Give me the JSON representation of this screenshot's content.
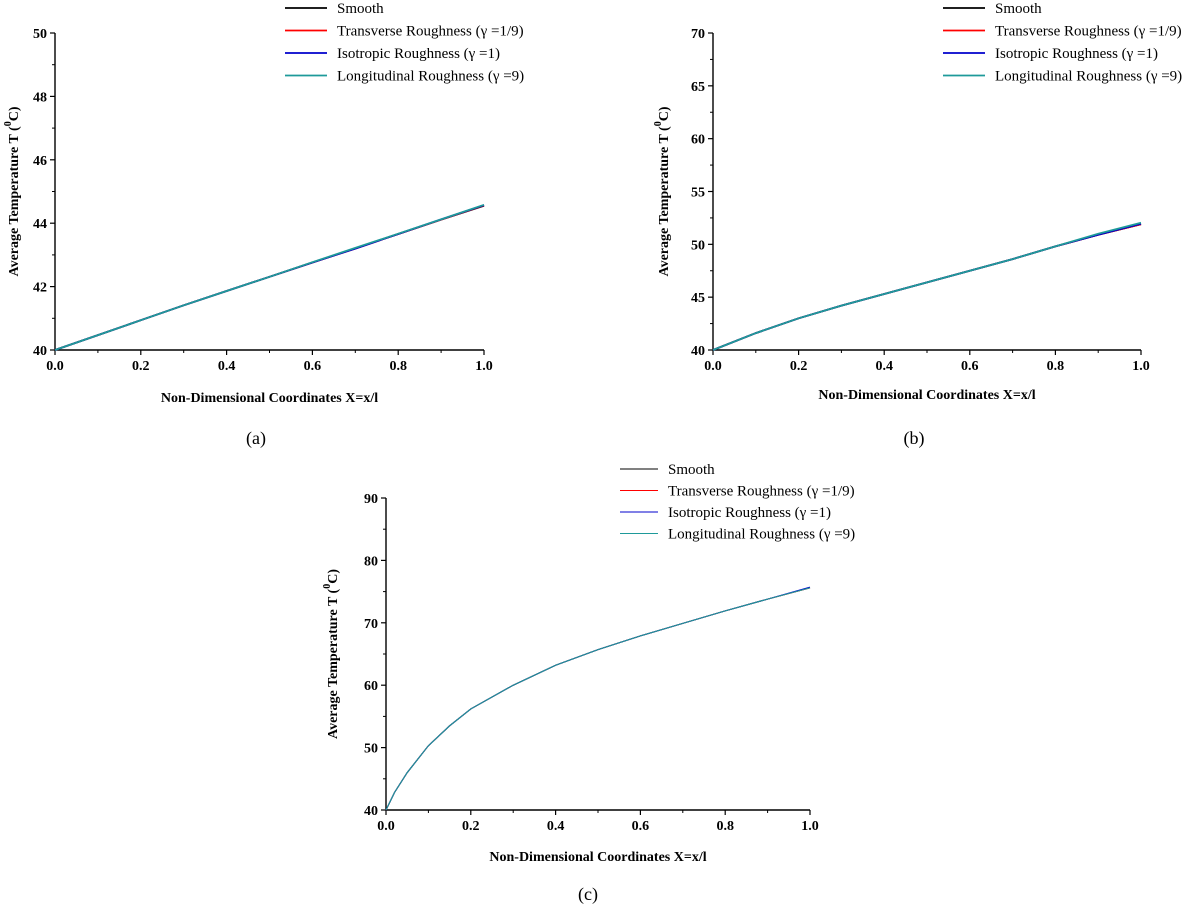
{
  "legend_colors": {
    "Smooth": "#000000",
    "Transverse Roughness (γ =1/9)": "#ff0000",
    "Isotropic Roughness (γ =1)": "#0000cc",
    "Longitudinal Roughness (γ =9)": "#1e9a9a"
  },
  "chart_data": [
    {
      "type": "line",
      "caption": "(a)",
      "xlabel": "Non-Dimensional Coordinates X=x/l",
      "ylabel": "Average Temperature T (",
      "ylabel_sup": "0",
      "ylabel_end": "C)",
      "xlim": [
        0,
        1
      ],
      "ylim": [
        40,
        50
      ],
      "xticks": [
        0.0,
        0.2,
        0.4,
        0.6,
        0.8,
        1.0
      ],
      "xtick_labels": [
        "0.0",
        "0.2",
        "0.4",
        "0.6",
        "0.8",
        "1.0"
      ],
      "yticks": [
        40,
        42,
        44,
        46,
        48,
        50
      ],
      "ytick_labels": [
        "40",
        "42",
        "44",
        "46",
        "48",
        "50"
      ],
      "legend": [
        "Smooth",
        "Transverse Roughness (γ =1/9)",
        "Isotropic Roughness (γ =1)",
        "Longitudinal Roughness (γ =9)"
      ],
      "x": [
        0.0,
        0.1,
        0.2,
        0.3,
        0.4,
        0.5,
        0.6,
        0.7,
        0.8,
        0.9,
        1.0
      ],
      "series": [
        {
          "name": "Smooth",
          "values": [
            40.0,
            40.47,
            40.94,
            41.41,
            41.86,
            42.31,
            42.76,
            43.21,
            43.66,
            44.11,
            44.55
          ]
        },
        {
          "name": "Transverse Roughness (γ =1/9)",
          "values": [
            40.0,
            40.47,
            40.94,
            41.41,
            41.86,
            42.31,
            42.76,
            43.2,
            43.66,
            44.11,
            44.56
          ]
        },
        {
          "name": "Isotropic Roughness (γ =1)",
          "values": [
            40.0,
            40.47,
            40.94,
            41.41,
            41.86,
            42.31,
            42.76,
            43.2,
            43.66,
            44.12,
            44.57
          ]
        },
        {
          "name": "Longitudinal Roughness (γ =9)",
          "values": [
            40.0,
            40.47,
            40.94,
            41.41,
            41.86,
            42.31,
            42.77,
            43.22,
            43.67,
            44.12,
            44.58
          ]
        }
      ]
    },
    {
      "type": "line",
      "caption": "(b)",
      "xlabel": "Non-Dimensional Coordinates X=x/l",
      "ylabel": "Average Temperature T (",
      "ylabel_sup": "0",
      "ylabel_end": "C)",
      "xlim": [
        0,
        1
      ],
      "ylim": [
        40,
        70
      ],
      "xticks": [
        0.0,
        0.2,
        0.4,
        0.6,
        0.8,
        1.0
      ],
      "xtick_labels": [
        "0.0",
        "0.2",
        "0.4",
        "0.6",
        "0.8",
        "1.0"
      ],
      "yticks": [
        40,
        45,
        50,
        55,
        60,
        65,
        70
      ],
      "ytick_labels": [
        "40",
        "45",
        "50",
        "55",
        "60",
        "65",
        "70"
      ],
      "legend": [
        "Smooth",
        "Transverse Roughness (γ =1/9)",
        "Isotropic Roughness (γ =1)",
        "Longitudinal Roughness (γ =9)"
      ],
      "x": [
        0.0,
        0.1,
        0.2,
        0.3,
        0.4,
        0.5,
        0.6,
        0.7,
        0.8,
        0.9,
        1.0
      ],
      "series": [
        {
          "name": "Smooth",
          "values": [
            40.0,
            41.6,
            43.0,
            44.2,
            45.3,
            46.4,
            47.5,
            48.6,
            49.8,
            50.9,
            51.9
          ]
        },
        {
          "name": "Transverse Roughness (γ =1/9)",
          "values": [
            40.0,
            41.6,
            43.0,
            44.2,
            45.3,
            46.4,
            47.5,
            48.6,
            49.8,
            50.9,
            51.9
          ]
        },
        {
          "name": "Isotropic Roughness (γ =1)",
          "values": [
            40.0,
            41.6,
            43.0,
            44.2,
            45.3,
            46.4,
            47.5,
            48.6,
            49.8,
            50.9,
            51.95
          ]
        },
        {
          "name": "Longitudinal Roughness (γ =9)",
          "values": [
            40.0,
            41.6,
            43.0,
            44.2,
            45.3,
            46.4,
            47.5,
            48.6,
            49.8,
            51.0,
            52.05
          ]
        }
      ]
    },
    {
      "type": "line",
      "caption": "(c)",
      "xlabel": "Non-Dimensional Coordinates X=x/l",
      "ylabel": "Average Temperature T (",
      "ylabel_sup": "0",
      "ylabel_end": "C)",
      "xlim": [
        0,
        1
      ],
      "ylim": [
        40,
        90
      ],
      "xticks": [
        0.0,
        0.2,
        0.4,
        0.6,
        0.8,
        1.0
      ],
      "xtick_labels": [
        "0.0",
        "0.2",
        "0.4",
        "0.6",
        "0.8",
        "1.0"
      ],
      "yticks": [
        40,
        50,
        60,
        70,
        80,
        90
      ],
      "ytick_labels": [
        "40",
        "50",
        "60",
        "70",
        "80",
        "90"
      ],
      "legend": [
        "Smooth",
        "Transverse Roughness (γ =1/9)",
        "Isotropic Roughness (γ =1)",
        "Longitudinal Roughness (γ =9)"
      ],
      "x": [
        0.0,
        0.02,
        0.05,
        0.1,
        0.15,
        0.2,
        0.3,
        0.4,
        0.5,
        0.6,
        0.7,
        0.8,
        0.9,
        1.0
      ],
      "series": [
        {
          "name": "Smooth",
          "values": [
            40.0,
            42.8,
            46.0,
            50.3,
            53.5,
            56.2,
            60.0,
            63.2,
            65.7,
            67.9,
            69.9,
            71.9,
            73.8,
            75.6
          ]
        },
        {
          "name": "Transverse Roughness (γ =1/9)",
          "values": [
            40.0,
            42.8,
            46.0,
            50.3,
            53.5,
            56.2,
            60.0,
            63.2,
            65.7,
            67.9,
            69.9,
            71.9,
            73.8,
            75.6
          ]
        },
        {
          "name": "Isotropic Roughness (γ =1)",
          "values": [
            40.0,
            42.8,
            46.0,
            50.3,
            53.5,
            56.2,
            60.0,
            63.2,
            65.7,
            67.9,
            69.9,
            71.9,
            73.8,
            75.7
          ]
        },
        {
          "name": "Longitudinal Roughness (γ =9)",
          "values": [
            40.0,
            42.8,
            46.0,
            50.3,
            53.5,
            56.2,
            60.0,
            63.2,
            65.7,
            67.9,
            69.9,
            71.9,
            73.8,
            75.6
          ]
        }
      ]
    }
  ]
}
